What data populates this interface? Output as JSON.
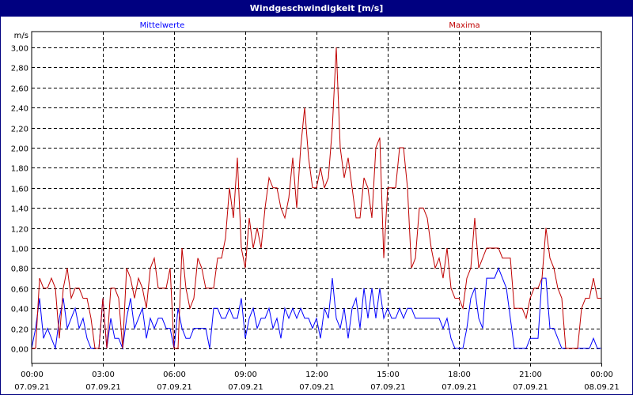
{
  "window": {
    "title": "Windgeschwindigkeit [m/s]"
  },
  "chart_data": {
    "type": "line",
    "unit_label": "m/s",
    "ylim": [
      0,
      3.0
    ],
    "y_ticks": [
      "0,00",
      "0,20",
      "0,40",
      "0,60",
      "0,80",
      "1,00",
      "1,20",
      "1,40",
      "1,60",
      "1,80",
      "2,00",
      "2,20",
      "2,40",
      "2,60",
      "2,80",
      "3,00"
    ],
    "x_ticks": [
      {
        "time": "00:00",
        "date": "07.09.21"
      },
      {
        "time": "03:00",
        "date": "07.09.21"
      },
      {
        "time": "06:00",
        "date": "07.09.21"
      },
      {
        "time": "09:00",
        "date": "07.09.21"
      },
      {
        "time": "12:00",
        "date": "07.09.21"
      },
      {
        "time": "15:00",
        "date": "07.09.21"
      },
      {
        "time": "18:00",
        "date": "07.09.21"
      },
      {
        "time": "21:00",
        "date": "07.09.21"
      },
      {
        "time": "00:00",
        "date": "08.09.21"
      }
    ],
    "x_range": [
      "07.09.21 00:00",
      "08.09.21 00:00"
    ],
    "x_interval_minutes": 10,
    "grid": true,
    "legend_placement": "top",
    "series": [
      {
        "name": "Mittelwerte",
        "color": "#0000ff",
        "values": [
          0,
          0.2,
          0.5,
          0.1,
          0.2,
          0.1,
          0,
          0.3,
          0.5,
          0.2,
          0.3,
          0.4,
          0.2,
          0.3,
          0.1,
          0,
          0,
          0,
          0.5,
          0,
          0.3,
          0.1,
          0.1,
          0,
          0.3,
          0.5,
          0.2,
          0.3,
          0.4,
          0.1,
          0.3,
          0.2,
          0.3,
          0.3,
          0.2,
          0.2,
          0,
          0.4,
          0.2,
          0.1,
          0.1,
          0.2,
          0.2,
          0.2,
          0.2,
          0,
          0.4,
          0.4,
          0.3,
          0.3,
          0.4,
          0.3,
          0.3,
          0.5,
          0.1,
          0.3,
          0.4,
          0.2,
          0.3,
          0.3,
          0.4,
          0.2,
          0.3,
          0.1,
          0.4,
          0.3,
          0.4,
          0.3,
          0.4,
          0.3,
          0.3,
          0.2,
          0.3,
          0.1,
          0.4,
          0.3,
          0.7,
          0.3,
          0.2,
          0.4,
          0.1,
          0.4,
          0.5,
          0.2,
          0.6,
          0.3,
          0.6,
          0.3,
          0.6,
          0.3,
          0.4,
          0.3,
          0.3,
          0.4,
          0.3,
          0.4,
          0.4,
          0.3,
          0.3,
          0.3,
          0.3,
          0.3,
          0.3,
          0.3,
          0.2,
          0.3,
          0.1,
          0,
          0,
          0,
          0.2,
          0.5,
          0.6,
          0.3,
          0.2,
          0.7,
          0.7,
          0.7,
          0.8,
          0.7,
          0.6,
          0.3,
          0,
          0,
          0,
          0,
          0.1,
          0.1,
          0.1,
          0.7,
          0.7,
          0.2,
          0.2,
          0.1,
          0,
          0,
          0,
          0,
          0,
          0,
          0,
          0,
          0.1,
          0,
          0
        ]
      },
      {
        "name": "Maxima",
        "color": "#c00000",
        "values": [
          0,
          0,
          0.7,
          0.6,
          0.6,
          0.7,
          0.6,
          0.1,
          0.6,
          0.8,
          0.5,
          0.6,
          0.6,
          0.5,
          0.5,
          0.3,
          0,
          0,
          0.5,
          0,
          0.6,
          0.6,
          0.5,
          0,
          0.8,
          0.7,
          0.5,
          0.7,
          0.6,
          0.4,
          0.8,
          0.9,
          0.6,
          0.6,
          0.6,
          0.8,
          0,
          0,
          1.0,
          0.6,
          0.4,
          0.5,
          0.9,
          0.8,
          0.6,
          0.6,
          0.6,
          0.9,
          0.9,
          1.1,
          1.6,
          1.3,
          1.9,
          1.0,
          0.8,
          1.3,
          1.0,
          1.2,
          1.0,
          1.4,
          1.7,
          1.6,
          1.6,
          1.4,
          1.3,
          1.5,
          1.9,
          1.4,
          2.0,
          2.4,
          1.9,
          1.6,
          1.6,
          1.8,
          1.6,
          1.7,
          2.2,
          3.0,
          2.0,
          1.7,
          1.9,
          1.6,
          1.3,
          1.3,
          1.7,
          1.6,
          1.3,
          2.0,
          2.1,
          0.9,
          1.6,
          1.6,
          1.6,
          2.0,
          2.0,
          1.6,
          0.8,
          0.9,
          1.4,
          1.4,
          1.3,
          1.0,
          0.8,
          0.9,
          0.7,
          1.0,
          0.6,
          0.5,
          0.5,
          0.4,
          0.7,
          0.8,
          1.3,
          0.8,
          0.9,
          1.0,
          1.0,
          1.0,
          1.0,
          0.9,
          0.9,
          0.9,
          0.4,
          0.4,
          0.4,
          0.3,
          0.5,
          0.6,
          0.6,
          0.7,
          1.2,
          0.9,
          0.8,
          0.6,
          0.5,
          0,
          0,
          0,
          0,
          0.4,
          0.5,
          0.5,
          0.7,
          0.5,
          0.5
        ]
      }
    ]
  }
}
